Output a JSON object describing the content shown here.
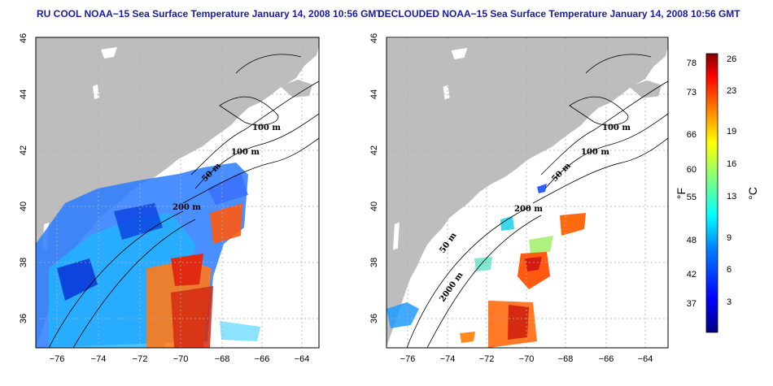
{
  "panels": [
    {
      "title": "RU COOL NOAA−15 Sea Surface Temperature January 14, 2008 10:56 GMT"
    },
    {
      "title": "DECLOUDED NOAA−15 Sea Surface Temperature January 14, 2008 10:56 GMT"
    }
  ],
  "axes": {
    "lon_ticks": [
      "−76",
      "−74",
      "−72",
      "−70",
      "−68",
      "−66",
      "−64"
    ],
    "lat_ticks": [
      "36",
      "38",
      "40",
      "42",
      "44",
      "46"
    ]
  },
  "contour_labels": [
    "100 m",
    "100 m",
    "50 m",
    "200 m",
    "50 m",
    "2000 m"
  ],
  "colorbar": {
    "fahrenheit_unit": "°F",
    "celsius_unit": "°C",
    "fahrenheit_ticks": [
      "37",
      "42",
      "48",
      "55",
      "60",
      "66",
      "73",
      "78"
    ],
    "celsius_ticks": [
      "3",
      "6",
      "9",
      "13",
      "16",
      "19",
      "23",
      "26"
    ]
  },
  "colors": {
    "land": "#bdbdbd",
    "title": "#1a1aa8",
    "grid": "#b0b0b0"
  }
}
